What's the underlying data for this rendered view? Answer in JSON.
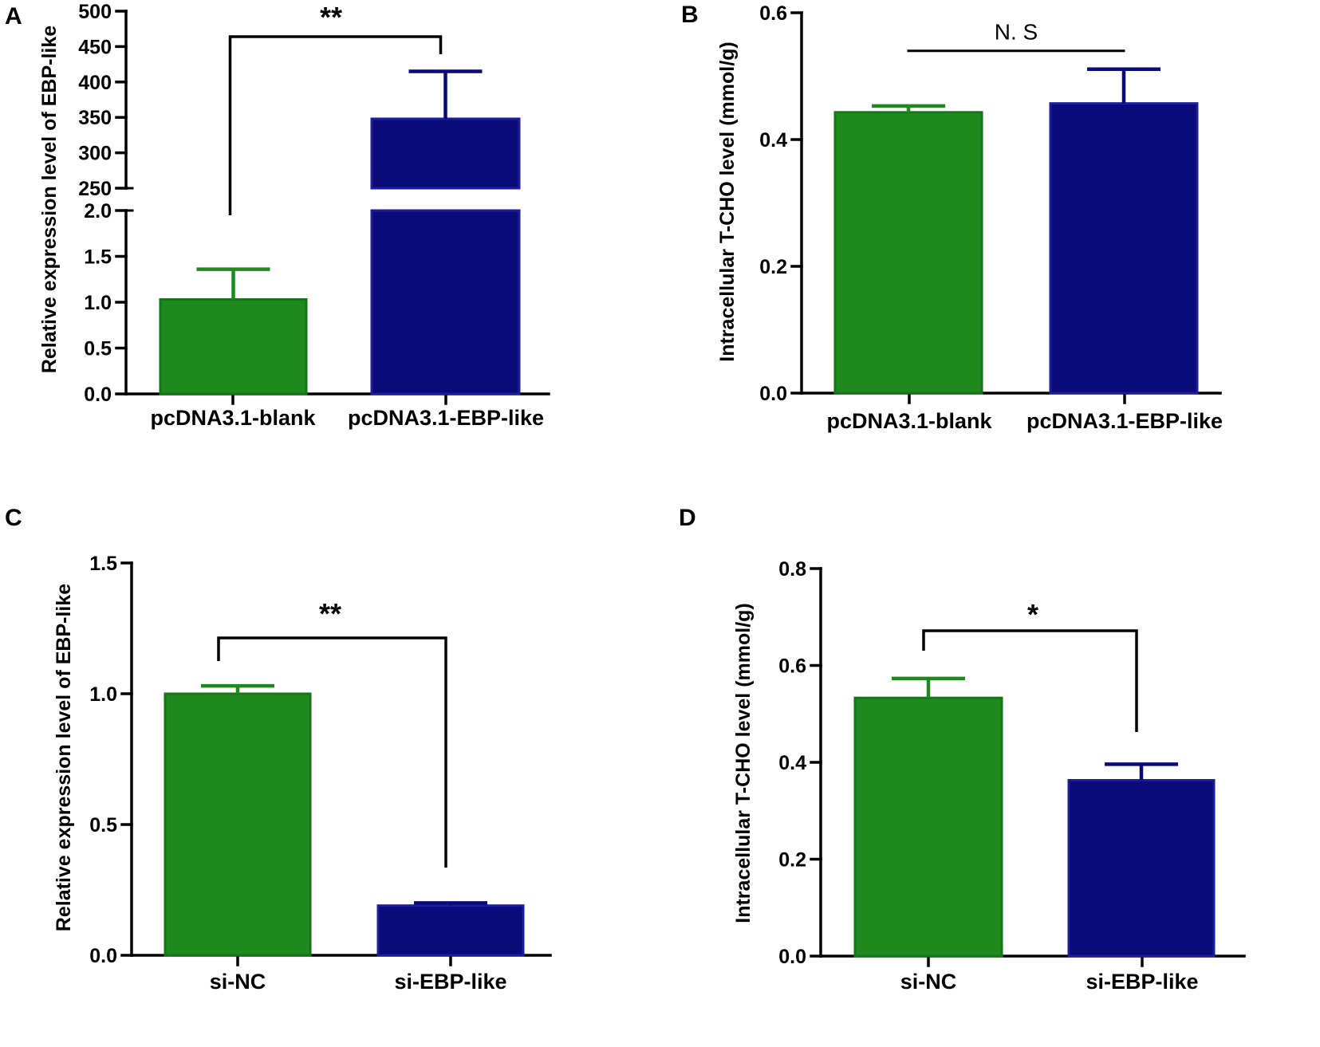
{
  "figure": {
    "panels": [
      "A",
      "B",
      "C",
      "D"
    ]
  },
  "colors": {
    "green": "#1e8a1e",
    "green_edge": "#16751a",
    "navy": "#0a0a78",
    "navy_edge": "#1c1c9c",
    "axis": "#000000"
  },
  "chart_data": [
    {
      "panel": "A",
      "type": "bar",
      "ylabel": "Relative expression level of EBP-like",
      "categories": [
        "pcDNA3.1-blank",
        "pcDNA3.1-EBP-like"
      ],
      "values": [
        1.03,
        348
      ],
      "errors": [
        0.33,
        67
      ],
      "broken_axis": true,
      "lower_ylim": [
        0,
        2.0
      ],
      "lower_ticks": [
        "0.0",
        "0.5",
        "1.0",
        "1.5",
        "2.0"
      ],
      "upper_ylim": [
        250,
        500
      ],
      "upper_ticks": [
        "250",
        "300",
        "350",
        "400",
        "450",
        "500"
      ],
      "significance": "**"
    },
    {
      "panel": "B",
      "type": "bar",
      "ylabel": "Intracellular T-CHO level (mmol/g)",
      "categories": [
        "pcDNA3.1-blank",
        "pcDNA3.1-EBP-like"
      ],
      "values": [
        0.443,
        0.457
      ],
      "errors": [
        0.01,
        0.054
      ],
      "ylim": [
        0,
        0.6
      ],
      "ticks": [
        "0.0",
        "0.2",
        "0.4",
        "0.6"
      ],
      "significance": "N. S"
    },
    {
      "panel": "C",
      "type": "bar",
      "ylabel": "Relative expression level of EBP-like",
      "categories": [
        "si-NC",
        "si-EBP-like"
      ],
      "values": [
        1.0,
        0.19
      ],
      "errors": [
        0.03,
        0.01
      ],
      "ylim": [
        0,
        1.5
      ],
      "ticks": [
        "0.0",
        "0.5",
        "1.0",
        "1.5"
      ],
      "significance": "**"
    },
    {
      "panel": "D",
      "type": "bar",
      "ylabel": "Intracellular T-CHO level (mmol/g)",
      "categories": [
        "si-NC",
        "si-EBP-like"
      ],
      "values": [
        0.533,
        0.363
      ],
      "errors": [
        0.04,
        0.033
      ],
      "ylim": [
        0,
        0.8
      ],
      "ticks": [
        "0.0",
        "0.2",
        "0.4",
        "0.6",
        "0.8"
      ],
      "significance": "*"
    }
  ]
}
